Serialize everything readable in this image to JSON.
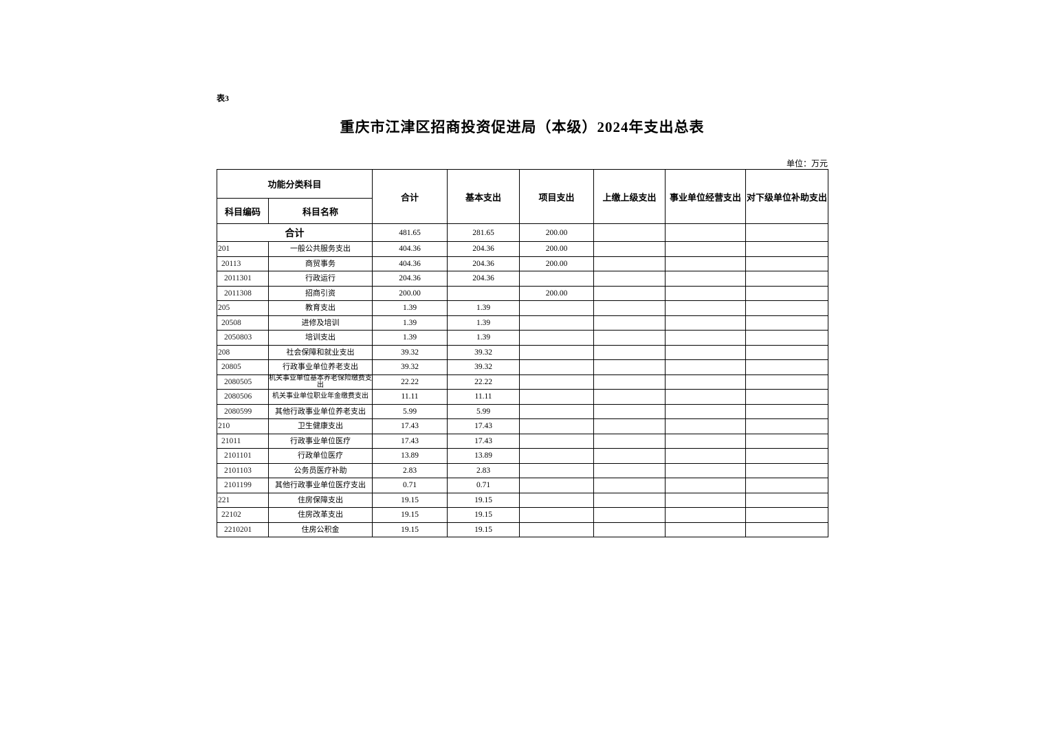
{
  "page": {
    "table_label": "表3",
    "title": "重庆市江津区招商投资促进局（本级）2024年支出总表",
    "unit_note": "单位：万元"
  },
  "table": {
    "header": {
      "group_label": "功能分类科目",
      "code_label": "科目编码",
      "name_label": "科目名称",
      "value_cols": [
        "合计",
        "基本支出",
        "项目支出",
        "上缴上级支出",
        "事业单位经营支出",
        "对下级单位补助支出"
      ]
    },
    "total_row": {
      "label": "合计",
      "values": [
        "481.65",
        "281.65",
        "200.00",
        "",
        "",
        ""
      ]
    },
    "rows": [
      {
        "code": "201",
        "name": "一般公共服务支出",
        "values": [
          "404.36",
          "204.36",
          "200.00",
          "",
          "",
          ""
        ]
      },
      {
        "code": "20113",
        "name": "商贸事务",
        "values": [
          "404.36",
          "204.36",
          "200.00",
          "",
          "",
          ""
        ]
      },
      {
        "code": "2011301",
        "name": "行政运行",
        "values": [
          "204.36",
          "204.36",
          "",
          "",
          "",
          ""
        ]
      },
      {
        "code": "2011308",
        "name": "招商引资",
        "values": [
          "200.00",
          "",
          "200.00",
          "",
          "",
          ""
        ]
      },
      {
        "code": "205",
        "name": "教育支出",
        "values": [
          "1.39",
          "1.39",
          "",
          "",
          "",
          ""
        ]
      },
      {
        "code": "20508",
        "name": "进修及培训",
        "values": [
          "1.39",
          "1.39",
          "",
          "",
          "",
          ""
        ]
      },
      {
        "code": "2050803",
        "name": "培训支出",
        "values": [
          "1.39",
          "1.39",
          "",
          "",
          "",
          ""
        ]
      },
      {
        "code": "208",
        "name": "社会保障和就业支出",
        "values": [
          "39.32",
          "39.32",
          "",
          "",
          "",
          ""
        ]
      },
      {
        "code": "20805",
        "name": "行政事业单位养老支出",
        "values": [
          "39.32",
          "39.32",
          "",
          "",
          "",
          ""
        ]
      },
      {
        "code": "2080505",
        "name": "机关事业单位基本养老保险缴费支出",
        "values": [
          "22.22",
          "22.22",
          "",
          "",
          "",
          ""
        ]
      },
      {
        "code": "2080506",
        "name": "机关事业单位职业年金缴费支出",
        "values": [
          "11.11",
          "11.11",
          "",
          "",
          "",
          ""
        ]
      },
      {
        "code": "2080599",
        "name": "其他行政事业单位养老支出",
        "values": [
          "5.99",
          "5.99",
          "",
          "",
          "",
          ""
        ]
      },
      {
        "code": "210",
        "name": "卫生健康支出",
        "values": [
          "17.43",
          "17.43",
          "",
          "",
          "",
          ""
        ]
      },
      {
        "code": "21011",
        "name": "行政事业单位医疗",
        "values": [
          "17.43",
          "17.43",
          "",
          "",
          "",
          ""
        ]
      },
      {
        "code": "2101101",
        "name": "行政单位医疗",
        "values": [
          "13.89",
          "13.89",
          "",
          "",
          "",
          ""
        ]
      },
      {
        "code": "2101103",
        "name": "公务员医疗补助",
        "values": [
          "2.83",
          "2.83",
          "",
          "",
          "",
          ""
        ]
      },
      {
        "code": "2101199",
        "name": "其他行政事业单位医疗支出",
        "values": [
          "0.71",
          "0.71",
          "",
          "",
          "",
          ""
        ]
      },
      {
        "code": "221",
        "name": "住房保障支出",
        "values": [
          "19.15",
          "19.15",
          "",
          "",
          "",
          ""
        ]
      },
      {
        "code": "22102",
        "name": "住房改革支出",
        "values": [
          "19.15",
          "19.15",
          "",
          "",
          "",
          ""
        ]
      },
      {
        "code": "2210201",
        "name": "住房公积金",
        "values": [
          "19.15",
          "19.15",
          "",
          "",
          "",
          ""
        ]
      }
    ]
  }
}
